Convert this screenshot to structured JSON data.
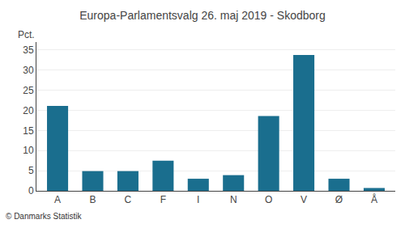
{
  "chart_data": {
    "type": "bar",
    "title": "Europa-Parlamentsvalg 26. maj 2019 - Skodborg",
    "categories": [
      "A",
      "B",
      "C",
      "F",
      "I",
      "N",
      "O",
      "V",
      "Ø",
      "Å"
    ],
    "values": [
      21.1,
      4.9,
      4.9,
      7.5,
      3.0,
      3.9,
      18.6,
      33.8,
      3.0,
      0.7
    ],
    "color": "#1a6e8e",
    "ylabel": "Pct.",
    "ylim": [
      0,
      37
    ],
    "yticks": [
      0,
      5,
      10,
      15,
      20,
      25,
      30,
      35
    ],
    "grid": true,
    "annotations": [
      "© Danmarks Statistik"
    ]
  }
}
